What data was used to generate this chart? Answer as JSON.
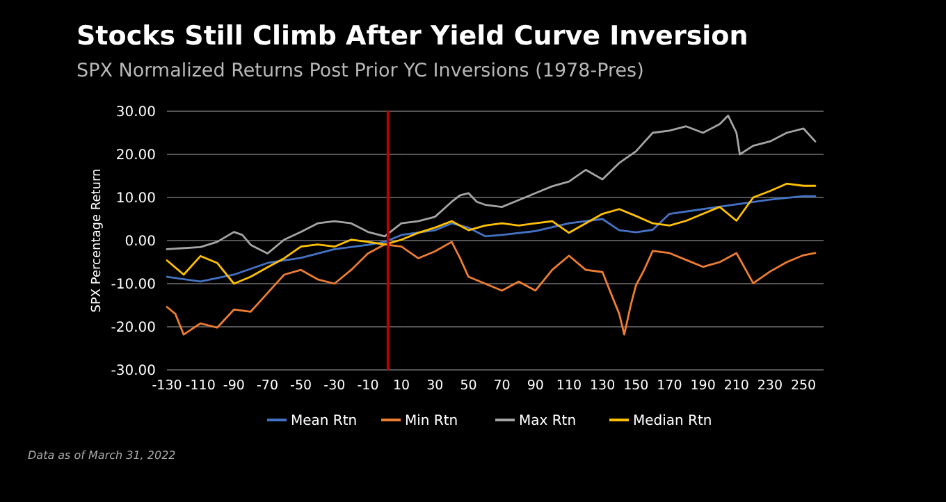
{
  "chart_data": {
    "type": "line",
    "title": "Stocks Still Climb After Yield Curve Inversion",
    "subtitle": "SPX Normalized Returns Post Prior YC Inversions (1978-Pres)",
    "ylabel": "SPX Percentage Return",
    "annotations": [
      "Data as of March 31, 2022"
    ],
    "xlim": [
      -130,
      262
    ],
    "xticks": [
      -130,
      -110,
      -90,
      -70,
      -50,
      -30,
      -10,
      10,
      30,
      50,
      70,
      90,
      110,
      130,
      150,
      170,
      190,
      210,
      230,
      250
    ],
    "ylim": [
      -30,
      30
    ],
    "yticks": [
      {
        "value": -30,
        "label": "-30.00"
      },
      {
        "value": -20,
        "label": "-20.00"
      },
      {
        "value": -10,
        "label": "-10.00"
      },
      {
        "value": 0,
        "label": "0.00"
      },
      {
        "value": 10,
        "label": "10.00"
      },
      {
        "value": 20,
        "label": "20.00"
      },
      {
        "value": 30,
        "label": "30.00"
      }
    ],
    "grid": "y",
    "legend": "bottom",
    "marker": "none",
    "line_style": "solid",
    "ref_lines": [
      {
        "axis": "x",
        "value": 2,
        "label": null,
        "color": "#c00000"
      }
    ],
    "series": [
      {
        "name": "Mean Rtn",
        "color": "#4472c4",
        "x": [
          -130,
          -110,
          -90,
          -70,
          -50,
          -30,
          -10,
          0,
          10,
          30,
          40,
          50,
          60,
          70,
          90,
          110,
          130,
          140,
          150,
          160,
          170,
          190,
          210,
          230,
          250,
          257
        ],
        "values": [
          -8.4,
          -9.5,
          -7.9,
          -5.2,
          -4,
          -2,
          -1,
          -0.3,
          1.3,
          2.4,
          4,
          3,
          1,
          1.3,
          2.2,
          4,
          5,
          2.4,
          1.9,
          2.5,
          6.2,
          7.3,
          8.4,
          9.5,
          10.3,
          10.3
        ]
      },
      {
        "name": "Min Rtn",
        "color": "#ed7d31",
        "x": [
          -130,
          -125,
          -120,
          -110,
          -100,
          -90,
          -80,
          -70,
          -60,
          -50,
          -40,
          -30,
          -20,
          -10,
          0,
          10,
          20,
          30,
          40,
          45,
          50,
          60,
          70,
          80,
          90,
          100,
          110,
          120,
          130,
          135,
          140,
          143,
          147,
          150,
          155,
          160,
          170,
          180,
          190,
          200,
          210,
          220,
          230,
          240,
          250,
          257
        ],
        "values": [
          -15.4,
          -17,
          -21.8,
          -19.2,
          -20.2,
          -16,
          -16.5,
          -12.2,
          -7.9,
          -6.8,
          -9,
          -10,
          -6.8,
          -3,
          -0.9,
          -1.4,
          -4.1,
          -2.5,
          -0.3,
          -4.1,
          -8.4,
          -10,
          -11.6,
          -9.5,
          -11.6,
          -6.8,
          -3.5,
          -6.8,
          -7.3,
          -12.2,
          -17,
          -21.8,
          -14.8,
          -10.4,
          -6.7,
          -2.4,
          -2.9,
          -4.5,
          -6.1,
          -5,
          -2.9,
          -9.9,
          -7.2,
          -5,
          -3.4,
          -2.9
        ]
      },
      {
        "name": "Max Rtn",
        "color": "#a5a5a5",
        "x": [
          -130,
          -110,
          -100,
          -90,
          -85,
          -80,
          -70,
          -60,
          -50,
          -40,
          -30,
          -20,
          -10,
          0,
          10,
          20,
          30,
          40,
          45,
          50,
          55,
          60,
          70,
          80,
          90,
          100,
          110,
          120,
          130,
          140,
          150,
          160,
          170,
          180,
          190,
          200,
          205,
          210,
          212,
          220,
          230,
          240,
          250,
          257
        ],
        "values": [
          -2,
          -1.5,
          -0.3,
          2,
          1.3,
          -1,
          -3,
          0.2,
          2,
          4,
          4.5,
          4,
          2,
          1,
          4,
          4.5,
          5.5,
          9,
          10.5,
          11,
          9,
          8.3,
          7.8,
          9.4,
          11,
          12.6,
          13.7,
          16.4,
          14.2,
          18,
          20.7,
          25,
          25.5,
          26.5,
          25,
          27,
          29,
          25,
          20,
          22,
          23,
          25,
          26,
          23
        ]
      },
      {
        "name": "Median Rtn",
        "color": "#ffc000",
        "x": [
          -130,
          -120,
          -110,
          -100,
          -90,
          -80,
          -70,
          -60,
          -50,
          -40,
          -30,
          -20,
          -10,
          0,
          10,
          20,
          30,
          40,
          50,
          60,
          70,
          80,
          90,
          100,
          110,
          120,
          130,
          140,
          150,
          160,
          170,
          180,
          190,
          200,
          210,
          220,
          230,
          240,
          250,
          257
        ],
        "values": [
          -4.6,
          -7.9,
          -3.6,
          -5.2,
          -10,
          -8.4,
          -6.2,
          -4.1,
          -1.4,
          -0.9,
          -1.4,
          0.2,
          -0.3,
          -0.9,
          0.2,
          1.8,
          3,
          4.5,
          2.4,
          3.5,
          4,
          3.5,
          4,
          4.5,
          1.8,
          4,
          6.2,
          7.3,
          5.7,
          4,
          3.5,
          4.6,
          6.2,
          7.8,
          4.6,
          10,
          11.5,
          13.2,
          12.7,
          12.7
        ]
      }
    ]
  }
}
